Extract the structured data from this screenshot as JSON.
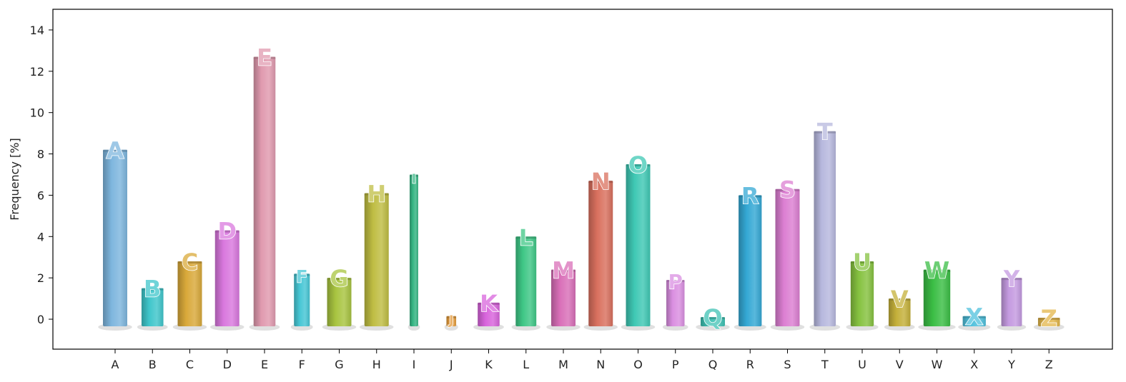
{
  "chart_data": {
    "type": "bar",
    "categories": [
      "A",
      "B",
      "C",
      "D",
      "E",
      "F",
      "G",
      "H",
      "I",
      "J",
      "K",
      "L",
      "M",
      "N",
      "O",
      "P",
      "Q",
      "R",
      "S",
      "T",
      "U",
      "V",
      "W",
      "X",
      "Y",
      "Z"
    ],
    "values": [
      8.2,
      1.5,
      2.8,
      4.3,
      12.7,
      2.2,
      2.0,
      6.1,
      7.0,
      0.15,
      0.8,
      4.0,
      2.4,
      6.7,
      7.5,
      1.9,
      0.1,
      6.0,
      6.3,
      9.1,
      2.8,
      1.0,
      2.4,
      0.15,
      2.0,
      0.07
    ],
    "colors": [
      "#7eb6de",
      "#3fc6cb",
      "#d9a93a",
      "#d978de",
      "#e09aaf",
      "#46c6d4",
      "#a8c440",
      "#bfbd43",
      "#35b583",
      "#e39a3b",
      "#d864dc",
      "#3fc786",
      "#d96fb8",
      "#d9705e",
      "#3fc8b4",
      "#da8fe1",
      "#3fc2b4",
      "#34a8d4",
      "#dc7fd2",
      "#b7b8de",
      "#86c240",
      "#c4b03a",
      "#3bbe45",
      "#4fc0dc",
      "#c49ae0",
      "#e3b64a"
    ],
    "title": "",
    "xlabel": "",
    "ylabel": "Frequency [%]",
    "ylim": [
      -1.45,
      15.0
    ],
    "yticks": [
      0,
      2,
      4,
      6,
      8,
      10,
      12,
      14
    ],
    "grid": false,
    "legend": "none"
  }
}
